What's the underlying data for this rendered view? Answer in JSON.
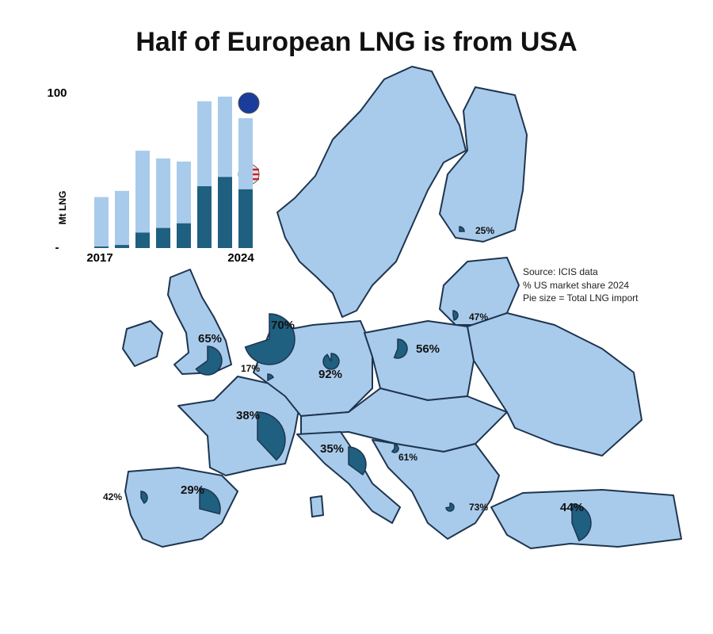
{
  "title": "Half of European LNG is from USA",
  "notes": [
    "Source: ICIS data",
    "% US market share 2024",
    "Pie size = Total LNG import"
  ],
  "chart_data": [
    {
      "type": "bar",
      "y_label": "Mt LNG",
      "categories": [
        "2017",
        null,
        null,
        null,
        null,
        null,
        null,
        "2024"
      ],
      "series": [
        {
          "color": "#a9cbeb",
          "values": [
            33,
            37,
            63,
            58,
            56,
            95,
            98,
            84
          ]
        },
        {
          "color": "#1f5f80",
          "values": [
            1,
            2,
            10,
            13,
            16,
            40,
            46,
            38
          ]
        }
      ],
      "ylim": [
        0,
        100
      ],
      "yticks": [
        {
          "value": 0,
          "label": "-"
        },
        100
      ]
    },
    {
      "type": "pie-map",
      "color": "#1f5f80",
      "values": [
        25,
        47,
        56,
        70,
        65,
        17,
        92,
        38,
        35,
        61,
        42,
        29,
        73,
        44
      ],
      "value_labels": [
        "25%",
        "47%",
        "56%",
        "70%",
        "65%",
        "17%",
        "92%",
        "38%",
        "35%",
        "61%",
        "42%",
        "29%",
        "73%",
        "44%"
      ]
    }
  ]
}
